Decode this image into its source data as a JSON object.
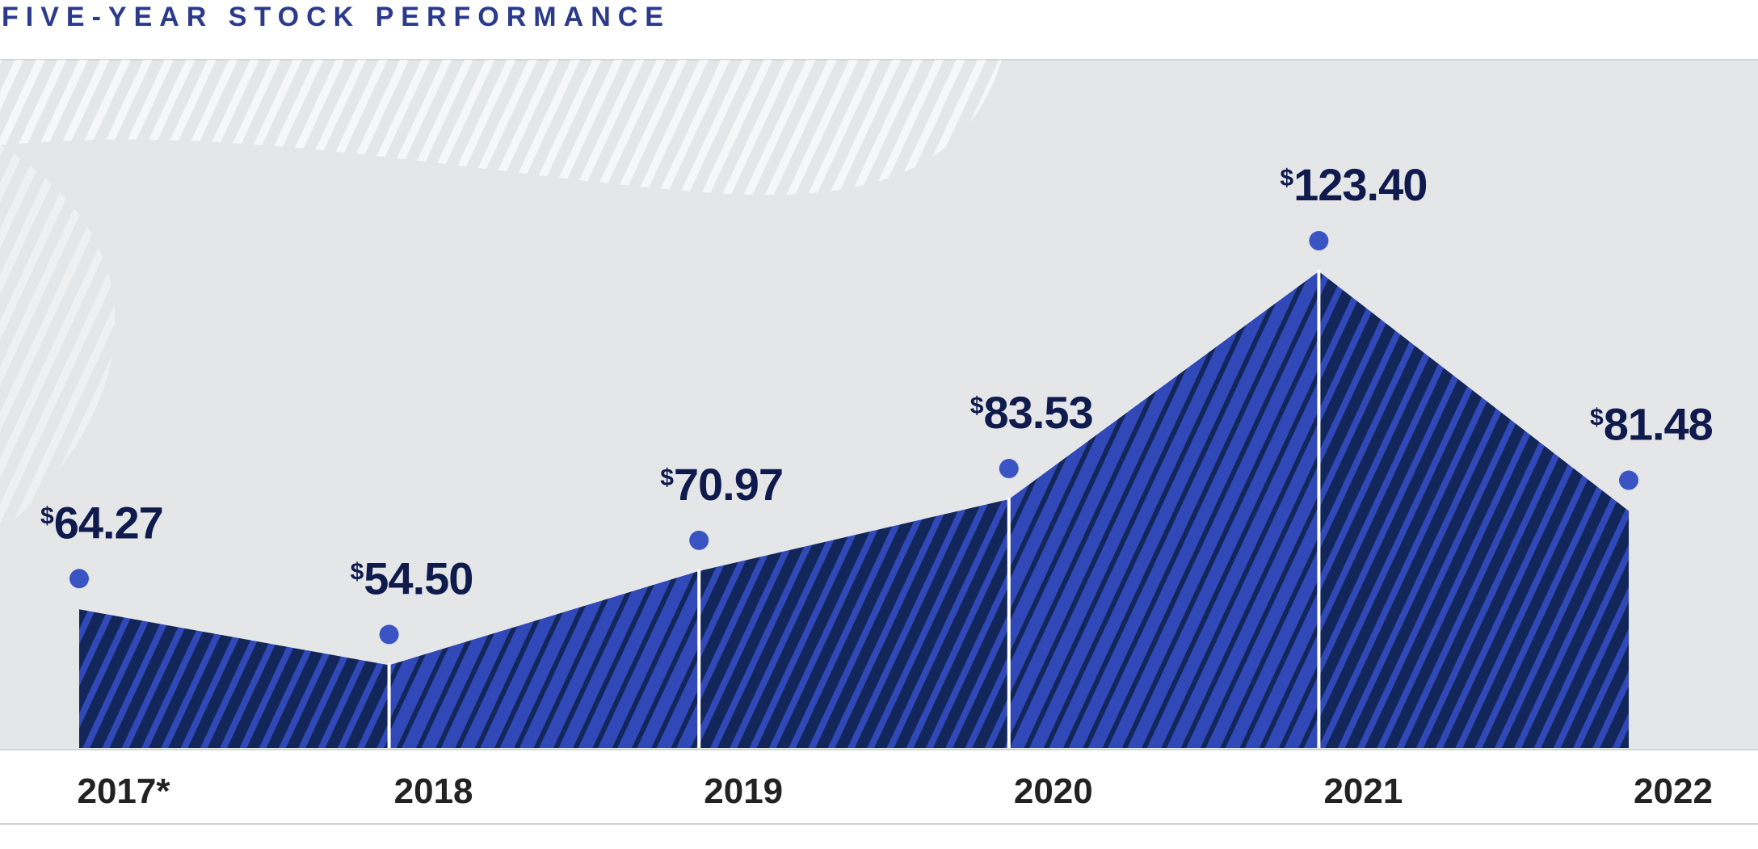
{
  "chart_data": {
    "type": "area",
    "title": "FIVE-YEAR STOCK PERFORMANCE",
    "categories": [
      "2017*",
      "2018",
      "2019",
      "2020",
      "2021",
      "2022"
    ],
    "values": [
      64.27,
      54.5,
      70.97,
      83.53,
      123.4,
      81.48
    ],
    "labels": [
      "64.27",
      "54.50",
      "70.97",
      "83.53",
      "123.40",
      "81.48"
    ],
    "currency_symbol": "$",
    "ylim": [
      0,
      130
    ],
    "colors": {
      "navy": "#13265a",
      "blue": "#3149b8",
      "dot": "#3a54c4",
      "background": "#e5e6e8",
      "title": "#2c3a8c"
    }
  }
}
